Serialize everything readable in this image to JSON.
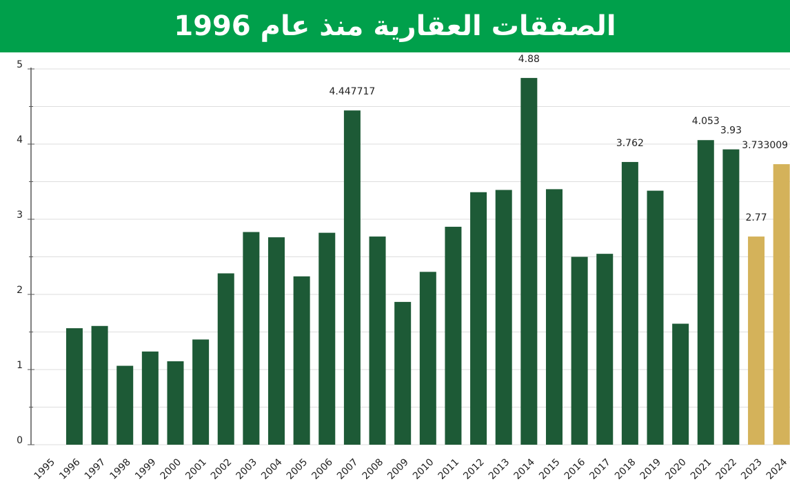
{
  "chart_data": {
    "type": "bar",
    "title": "الصفقات العقارية منذ عام 1996",
    "categories": [
      "1995",
      "1996",
      "1997",
      "1998",
      "1999",
      "2000",
      "2001",
      "2002",
      "2003",
      "2004",
      "2005",
      "2006",
      "2007",
      "2008",
      "2009",
      "2010",
      "2011",
      "2012",
      "2013",
      "2014",
      "2015",
      "2016",
      "2017",
      "2018",
      "2019",
      "2020",
      "2021",
      "2022",
      "2023",
      "2024"
    ],
    "values": [
      null,
      1.55,
      1.58,
      1.05,
      1.24,
      1.11,
      1.4,
      2.28,
      2.83,
      2.76,
      2.24,
      2.82,
      4.447717,
      2.77,
      1.9,
      2.3,
      2.9,
      3.36,
      3.39,
      4.88,
      3.4,
      2.5,
      2.54,
      3.762,
      3.38,
      1.61,
      4.053,
      3.93,
      2.77,
      3.733009
    ],
    "value_labels": [
      null,
      null,
      null,
      null,
      null,
      null,
      null,
      null,
      null,
      null,
      null,
      null,
      "4.447717",
      null,
      null,
      null,
      null,
      null,
      null,
      "4.88",
      null,
      null,
      null,
      "3.762",
      null,
      null,
      "4.053",
      "3.93",
      "2.77",
      "3.733009"
    ],
    "colors": [
      "#1d5a36",
      "#1d5a36",
      "#1d5a36",
      "#1d5a36",
      "#1d5a36",
      "#1d5a36",
      "#1d5a36",
      "#1d5a36",
      "#1d5a36",
      "#1d5a36",
      "#1d5a36",
      "#1d5a36",
      "#1d5a36",
      "#1d5a36",
      "#1d5a36",
      "#1d5a36",
      "#1d5a36",
      "#1d5a36",
      "#1d5a36",
      "#1d5a36",
      "#1d5a36",
      "#1d5a36",
      "#1d5a36",
      "#1d5a36",
      "#1d5a36",
      "#1d5a36",
      "#1d5a36",
      "#1d5a36",
      "#d4b25a",
      "#d4b25a"
    ],
    "ylim": [
      0,
      5
    ],
    "yticks": [
      0,
      1,
      2,
      3,
      4,
      5
    ],
    "minor_yticks": [
      0.5,
      1.5,
      2.5,
      3.5,
      4.5
    ],
    "grid": true
  }
}
